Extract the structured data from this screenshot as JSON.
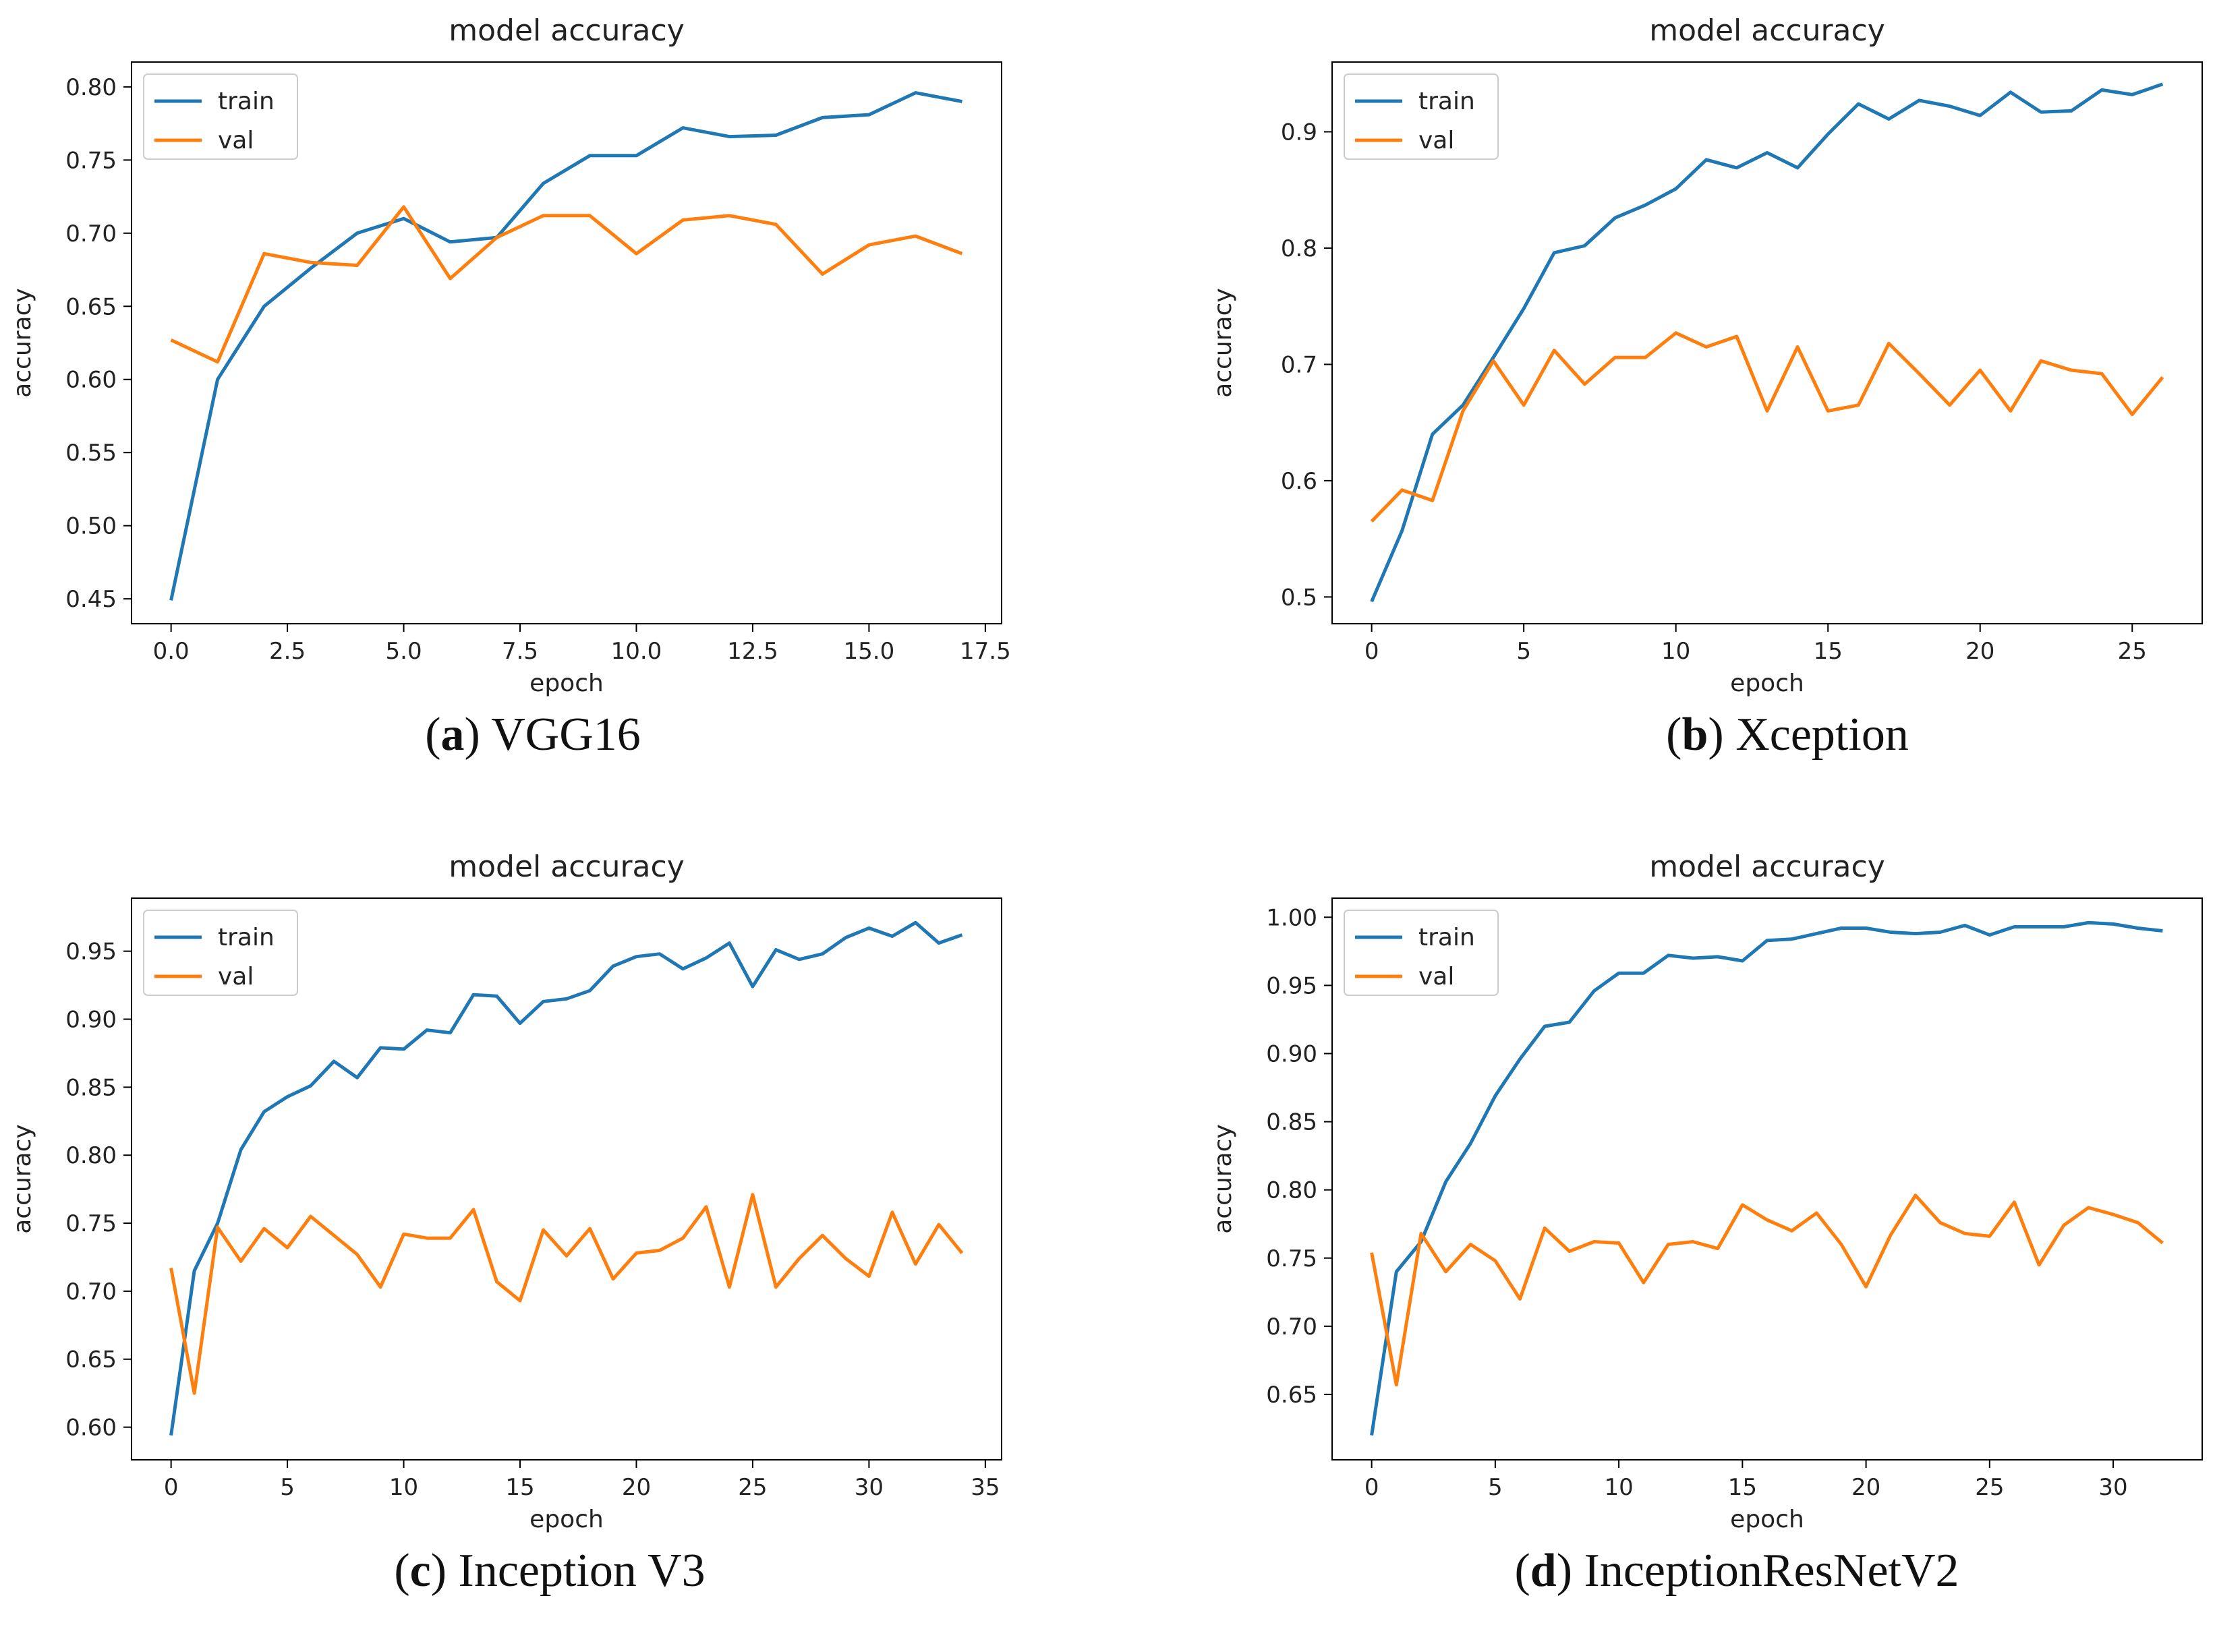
{
  "colors": {
    "train": "#1f77b4",
    "val": "#ff7f0e",
    "axis": "#000000",
    "text": "#222222"
  },
  "chart_data": [
    {
      "id": "a",
      "type": "line",
      "title": "model accuracy",
      "xlabel": "epoch",
      "ylabel": "accuracy",
      "xlim": [
        -0.85,
        17.85
      ],
      "ylim": [
        0.433,
        0.817
      ],
      "xticks": [
        0,
        2.5,
        5,
        7.5,
        10,
        12.5,
        15,
        17.5
      ],
      "xtick_labels": [
        "0.0",
        "2.5",
        "5.0",
        "7.5",
        "10.0",
        "12.5",
        "15.0",
        "17.5"
      ],
      "yticks": [
        0.45,
        0.5,
        0.55,
        0.6,
        0.65,
        0.7,
        0.75,
        0.8
      ],
      "ytick_labels": [
        "0.45",
        "0.50",
        "0.55",
        "0.60",
        "0.65",
        "0.70",
        "0.75",
        "0.80"
      ],
      "legend": {
        "position": "upper-left",
        "labels": [
          "train",
          "val"
        ]
      },
      "caption": {
        "letter": "a",
        "text": " VGG16"
      },
      "series": [
        {
          "name": "train",
          "values": [
            0.449,
            0.6,
            0.65,
            0.676,
            0.7,
            0.71,
            0.694,
            0.697,
            0.734,
            0.753,
            0.753,
            0.772,
            0.766,
            0.767,
            0.779,
            0.781,
            0.796,
            0.79
          ]
        },
        {
          "name": "val",
          "values": [
            0.627,
            0.612,
            0.686,
            0.68,
            0.678,
            0.718,
            0.669,
            0.697,
            0.712,
            0.712,
            0.686,
            0.709,
            0.712,
            0.706,
            0.672,
            0.692,
            0.698,
            0.686
          ]
        }
      ]
    },
    {
      "id": "b",
      "type": "line",
      "title": "model accuracy",
      "xlabel": "epoch",
      "ylabel": "accuracy",
      "xlim": [
        -1.3,
        27.3
      ],
      "ylim": [
        0.477,
        0.96
      ],
      "xticks": [
        0,
        5,
        10,
        15,
        20,
        25
      ],
      "xtick_labels": [
        "0",
        "5",
        "10",
        "15",
        "20",
        "25"
      ],
      "yticks": [
        0.5,
        0.6,
        0.7,
        0.8,
        0.9
      ],
      "ytick_labels": [
        "0.5",
        "0.6",
        "0.7",
        "0.8",
        "0.9"
      ],
      "legend": {
        "position": "upper-left",
        "labels": [
          "train",
          "val"
        ]
      },
      "caption": {
        "letter": "b",
        "text": " Xception"
      },
      "series": [
        {
          "name": "train",
          "values": [
            0.496,
            0.557,
            0.64,
            0.665,
            0.706,
            0.748,
            0.796,
            0.802,
            0.826,
            0.837,
            0.851,
            0.876,
            0.869,
            0.882,
            0.869,
            0.898,
            0.924,
            0.911,
            0.927,
            0.922,
            0.914,
            0.934,
            0.917,
            0.918,
            0.936,
            0.932,
            0.941
          ]
        },
        {
          "name": "val",
          "values": [
            0.565,
            0.592,
            0.583,
            0.66,
            0.703,
            0.665,
            0.712,
            0.683,
            0.706,
            0.706,
            0.727,
            0.715,
            0.724,
            0.66,
            0.715,
            0.66,
            0.665,
            0.718,
            0.692,
            0.665,
            0.695,
            0.66,
            0.703,
            0.695,
            0.692,
            0.657,
            0.689
          ]
        }
      ]
    },
    {
      "id": "c",
      "type": "line",
      "title": "model accuracy",
      "xlabel": "epoch",
      "ylabel": "accuracy",
      "xlim": [
        -1.7,
        35.7
      ],
      "ylim": [
        0.576,
        0.989
      ],
      "xticks": [
        0,
        5,
        10,
        15,
        20,
        25,
        30,
        35
      ],
      "xtick_labels": [
        "0",
        "5",
        "10",
        "15",
        "20",
        "25",
        "30",
        "35"
      ],
      "yticks": [
        0.6,
        0.65,
        0.7,
        0.75,
        0.8,
        0.85,
        0.9,
        0.95
      ],
      "ytick_labels": [
        "0.60",
        "0.65",
        "0.70",
        "0.75",
        "0.80",
        "0.85",
        "0.90",
        "0.95"
      ],
      "legend": {
        "position": "upper-left",
        "labels": [
          "train",
          "val"
        ]
      },
      "caption": {
        "letter": "c",
        "text": " Inception V3"
      },
      "series": [
        {
          "name": "train",
          "values": [
            0.594,
            0.715,
            0.75,
            0.804,
            0.832,
            0.843,
            0.851,
            0.869,
            0.857,
            0.879,
            0.878,
            0.892,
            0.89,
            0.918,
            0.917,
            0.897,
            0.913,
            0.915,
            0.921,
            0.939,
            0.946,
            0.948,
            0.937,
            0.945,
            0.956,
            0.924,
            0.951,
            0.944,
            0.948,
            0.96,
            0.967,
            0.961,
            0.971,
            0.956,
            0.962
          ]
        },
        {
          "name": "val",
          "values": [
            0.717,
            0.625,
            0.747,
            0.722,
            0.746,
            0.732,
            0.755,
            0.741,
            0.727,
            0.703,
            0.742,
            0.739,
            0.739,
            0.76,
            0.707,
            0.693,
            0.745,
            0.726,
            0.746,
            0.709,
            0.728,
            0.73,
            0.739,
            0.762,
            0.703,
            0.771,
            0.703,
            0.724,
            0.741,
            0.724,
            0.711,
            0.758,
            0.72,
            0.749,
            0.728
          ]
        }
      ]
    },
    {
      "id": "d",
      "type": "line",
      "title": "model accuracy",
      "xlabel": "epoch",
      "ylabel": "accuracy",
      "xlim": [
        -1.6,
        33.6
      ],
      "ylim": [
        0.602,
        1.014
      ],
      "xticks": [
        0,
        5,
        10,
        15,
        20,
        25,
        30
      ],
      "xtick_labels": [
        "0",
        "5",
        "10",
        "15",
        "20",
        "25",
        "30"
      ],
      "yticks": [
        0.65,
        0.7,
        0.75,
        0.8,
        0.85,
        0.9,
        0.95,
        1.0
      ],
      "ytick_labels": [
        "0.65",
        "0.70",
        "0.75",
        "0.80",
        "0.85",
        "0.90",
        "0.95",
        "1.00"
      ],
      "legend": {
        "position": "upper-left",
        "labels": [
          "train",
          "val"
        ]
      },
      "caption": {
        "letter": "d",
        "text": " InceptionResNetV2"
      },
      "series": [
        {
          "name": "train",
          "values": [
            0.62,
            0.74,
            0.762,
            0.806,
            0.834,
            0.869,
            0.896,
            0.92,
            0.923,
            0.946,
            0.959,
            0.959,
            0.972,
            0.97,
            0.971,
            0.968,
            0.983,
            0.984,
            0.988,
            0.992,
            0.992,
            0.989,
            0.988,
            0.989,
            0.994,
            0.987,
            0.993,
            0.993,
            0.993,
            0.996,
            0.995,
            0.992,
            0.99
          ]
        },
        {
          "name": "val",
          "values": [
            0.754,
            0.657,
            0.768,
            0.74,
            0.76,
            0.748,
            0.72,
            0.772,
            0.755,
            0.762,
            0.761,
            0.732,
            0.76,
            0.762,
            0.757,
            0.789,
            0.778,
            0.77,
            0.783,
            0.76,
            0.729,
            0.767,
            0.796,
            0.776,
            0.768,
            0.766,
            0.791,
            0.745,
            0.774,
            0.787,
            0.782,
            0.776,
            0.761
          ]
        }
      ]
    }
  ]
}
